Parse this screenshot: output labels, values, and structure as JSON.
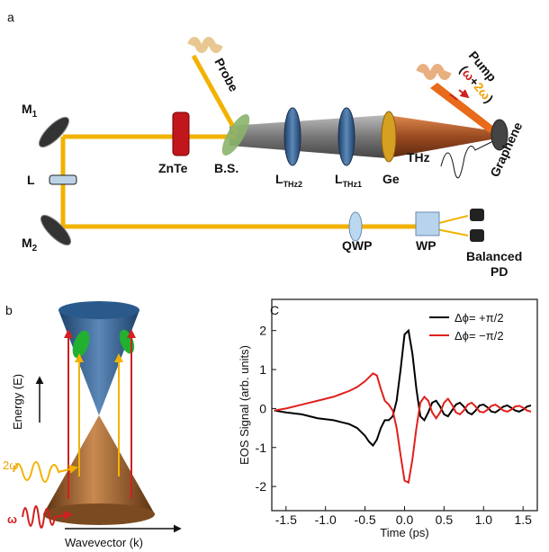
{
  "panel_a": {
    "label": "a",
    "probe": "Probe",
    "pump": "Pump",
    "pump_freq": [
      "(",
      "ω",
      "+",
      "2ω",
      ")"
    ],
    "m1": {
      "main": "M",
      "sub": "1"
    },
    "lens": "L",
    "m2": {
      "main": "M",
      "sub": "2"
    },
    "znte": "ZnTe",
    "bs": "B.S.",
    "lthz2": {
      "main": "L",
      "sub": "THz2"
    },
    "lthz1": {
      "main": "L",
      "sub": "THz1"
    },
    "ge": "Ge",
    "thz": "THz",
    "graphene": "Graphene",
    "qwp": "QWP",
    "wp": "WP",
    "detector": [
      "Balanced",
      "PD"
    ]
  },
  "panel_b": {
    "label": "b",
    "energy": "Energy (E)",
    "wavevector": "Wavevector (k)",
    "two_omega": "2ω",
    "omega": "ω"
  },
  "panel_c": {
    "label": "C"
  },
  "chart_data": {
    "type": "line",
    "x_label": "Time (ps)",
    "y_label": "EOS Signal (arb. units)",
    "xlim": [
      -1.68,
      1.68
    ],
    "ylim": [
      -2.62,
      2.8
    ],
    "xticks": [
      -1.5,
      {
        "value": -1,
        "label": "-1.0"
      },
      -0.5,
      {
        "value": 0,
        "label": "0.0"
      },
      0.5,
      {
        "value": 1,
        "label": "1.0"
      },
      1.5
    ],
    "yticks": [
      -2,
      -1,
      0,
      1,
      2
    ],
    "legend": "top-right",
    "x": [
      -1.65,
      -1.5,
      -1.3,
      -1.1,
      -0.9,
      -0.7,
      -0.6,
      -0.5,
      -0.45,
      -0.4,
      -0.35,
      -0.3,
      -0.25,
      -0.2,
      -0.15,
      -0.1,
      -0.05,
      0,
      0.05,
      0.1,
      0.15,
      0.2,
      0.25,
      0.3,
      0.35,
      0.4,
      0.45,
      0.5,
      0.55,
      0.6,
      0.65,
      0.7,
      0.75,
      0.8,
      0.85,
      0.9,
      0.95,
      1.0,
      1.05,
      1.1,
      1.15,
      1.2,
      1.25,
      1.3,
      1.35,
      1.4,
      1.45,
      1.5,
      1.55,
      1.6
    ],
    "series": [
      {
        "name": "Δϕ= +π/2",
        "color": "#000000",
        "values": [
          -0.05,
          -0.1,
          -0.15,
          -0.25,
          -0.3,
          -0.4,
          -0.5,
          -0.7,
          -0.85,
          -0.95,
          -0.8,
          -0.5,
          -0.3,
          -0.3,
          -0.2,
          0.2,
          1.0,
          1.9,
          2.0,
          1.4,
          0.5,
          -0.2,
          -0.3,
          -0.1,
          0.15,
          0.2,
          0.05,
          -0.15,
          -0.2,
          -0.05,
          0.1,
          0.15,
          0.05,
          -0.1,
          -0.15,
          -0.05,
          0.08,
          0.1,
          0.03,
          -0.08,
          -0.1,
          -0.03,
          0.05,
          0.08,
          0.02,
          -0.05,
          -0.08,
          -0.03,
          0.05,
          0.08
        ]
      },
      {
        "name": "Δϕ= −π/2",
        "color": "#e0201c",
        "values": [
          -0.05,
          0.0,
          0.1,
          0.2,
          0.3,
          0.45,
          0.55,
          0.7,
          0.8,
          0.9,
          0.85,
          0.5,
          0.2,
          0.1,
          -0.05,
          -0.5,
          -1.2,
          -1.85,
          -1.9,
          -1.3,
          -0.5,
          0.15,
          0.3,
          0.2,
          -0.1,
          -0.25,
          -0.1,
          0.15,
          0.25,
          0.1,
          -0.1,
          -0.15,
          -0.05,
          0.1,
          0.15,
          0.05,
          -0.08,
          -0.1,
          -0.03,
          0.07,
          0.1,
          0.03,
          -0.05,
          -0.08,
          -0.03,
          0.05,
          0.07,
          0.02,
          -0.05,
          -0.08
        ]
      }
    ]
  }
}
